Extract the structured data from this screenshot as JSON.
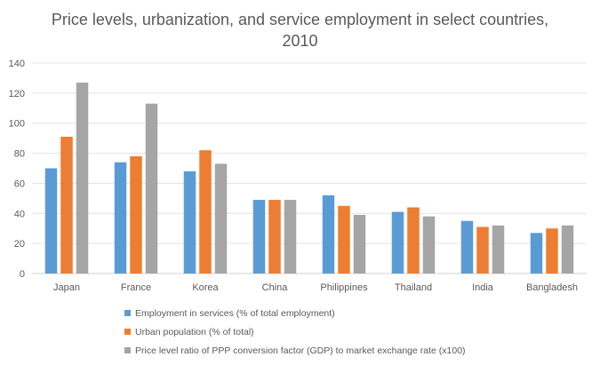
{
  "chart_data": {
    "type": "bar",
    "title_line1": "Price levels, urbanization, and service employment in select countries,",
    "title_line2": "2010",
    "categories": [
      "Japan",
      "France",
      "Korea",
      "China",
      "Philippines",
      "Thailand",
      "India",
      "Bangladesh"
    ],
    "series": [
      {
        "name": "Employment in services (% of total employment)",
        "color": "#5B9BD5",
        "values": [
          70,
          74,
          68,
          49,
          52,
          41,
          35,
          27
        ]
      },
      {
        "name": "Urban population (% of total)",
        "color": "#ED7D31",
        "values": [
          91,
          78,
          82,
          49,
          45,
          44,
          31,
          30
        ]
      },
      {
        "name": "Price level ratio of PPP conversion factor (GDP) to market exchange rate (x100)",
        "color": "#A5A5A5",
        "values": [
          127,
          113,
          73,
          49,
          39,
          38,
          32,
          32
        ]
      }
    ],
    "yticks": [
      "0",
      "20",
      "40",
      "60",
      "80",
      "100",
      "120",
      "140"
    ],
    "ylim": [
      0,
      140
    ],
    "grid": true,
    "legend_position": "bottom"
  }
}
